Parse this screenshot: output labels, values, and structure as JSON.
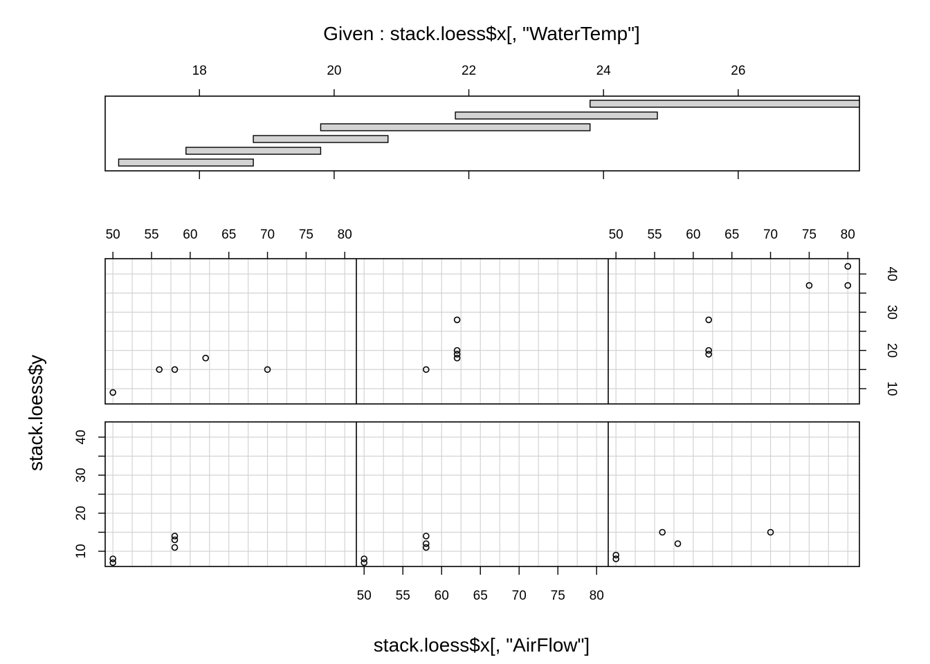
{
  "chart_data": {
    "type": "scatter",
    "title": "Given : stack.loess$x[, \"WaterTemp\"]",
    "xlabel": "stack.loess$x[, \"AirFlow\"]",
    "ylabel": "stack.loess$y",
    "given": {
      "range": [
        16.6,
        27.8
      ],
      "ticks": [
        18,
        20,
        22,
        24,
        26
      ],
      "intervals": [
        [
          16.8,
          18.8
        ],
        [
          17.8,
          19.8
        ],
        [
          18.8,
          20.8
        ],
        [
          19.8,
          23.8
        ],
        [
          21.8,
          24.8
        ],
        [
          23.8,
          27.8
        ]
      ]
    },
    "x_axis": {
      "ticks": [
        50,
        55,
        60,
        65,
        70,
        75,
        80
      ],
      "range": [
        49,
        81.5
      ]
    },
    "y_axis": {
      "ticks": [
        10,
        20,
        30,
        40
      ],
      "range": [
        6,
        44
      ]
    },
    "grid": true,
    "panels": [
      {
        "points": [
          [
            50,
            8
          ],
          [
            50,
            7
          ]
        ],
        "row": 2,
        "col": 1
      },
      {
        "points": [
          [
            58,
            14
          ],
          [
            58,
            13
          ],
          [
            58,
            11
          ]
        ],
        "row": 2,
        "col": 1,
        "extra": true
      },
      {
        "points": [
          [
            50,
            8
          ],
          [
            50,
            7
          ],
          [
            58,
            14
          ],
          [
            58,
            12
          ],
          [
            58,
            11
          ]
        ],
        "row": 2,
        "col": 2
      },
      {
        "points": [
          [
            50,
            9
          ],
          [
            50,
            8
          ],
          [
            56,
            15
          ],
          [
            58,
            12
          ],
          [
            70,
            15
          ]
        ],
        "row": 2,
        "col": 3
      },
      {
        "points": [
          [
            50,
            9
          ],
          [
            56,
            15
          ],
          [
            58,
            15
          ],
          [
            62,
            18
          ],
          [
            70,
            15
          ]
        ],
        "row": 1,
        "col": 1
      },
      {
        "points": [
          [
            58,
            15
          ],
          [
            62,
            28
          ],
          [
            62,
            20
          ],
          [
            62,
            19
          ],
          [
            62,
            18
          ]
        ],
        "row": 1,
        "col": 2
      },
      {
        "points": [
          [
            62,
            28
          ],
          [
            62,
            20
          ],
          [
            62,
            19
          ],
          [
            75,
            37
          ],
          [
            80,
            42
          ],
          [
            80,
            37
          ]
        ],
        "row": 1,
        "col": 3
      }
    ]
  }
}
